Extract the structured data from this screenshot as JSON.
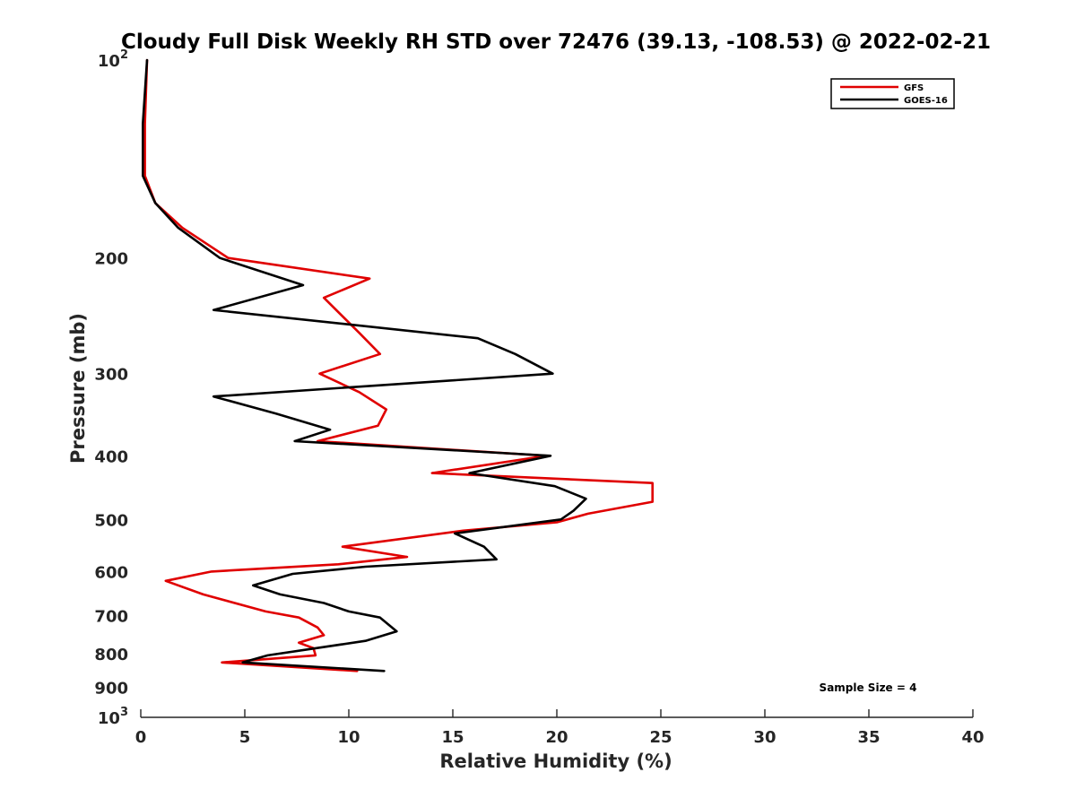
{
  "chart_data": {
    "type": "line",
    "title": "Cloudy Full Disk Weekly RH STD over 72476 (39.13, -108.53) @ 2022-02-21",
    "xlabel": "Relative Humidity (%)",
    "ylabel": "Pressure (mb)",
    "xlim": [
      0,
      40
    ],
    "ylim": [
      100,
      1000
    ],
    "yscale": "log",
    "y_reversed": true,
    "grid": false,
    "x_ticks": [
      0,
      5,
      10,
      15,
      20,
      25,
      30,
      35,
      40
    ],
    "y_ticks": [
      {
        "value": 100,
        "base": "10",
        "exp": "2"
      },
      {
        "value": 200,
        "label": "200"
      },
      {
        "value": 300,
        "label": "300"
      },
      {
        "value": 400,
        "label": "400"
      },
      {
        "value": 500,
        "label": "500"
      },
      {
        "value": 600,
        "label": "600"
      },
      {
        "value": 700,
        "label": "700"
      },
      {
        "value": 800,
        "label": "800"
      },
      {
        "value": 900,
        "label": "900"
      },
      {
        "value": 1000,
        "base": "10",
        "exp": "3"
      }
    ],
    "legend_position": "top-right",
    "annotation": "Sample Size = 4",
    "series": [
      {
        "name": "GFS",
        "color": "#e00000",
        "points": [
          {
            "x": 0.3,
            "y": 100
          },
          {
            "x": 0.2,
            "y": 125
          },
          {
            "x": 0.2,
            "y": 150
          },
          {
            "x": 0.7,
            "y": 165
          },
          {
            "x": 2.0,
            "y": 180
          },
          {
            "x": 4.2,
            "y": 200
          },
          {
            "x": 11.0,
            "y": 215
          },
          {
            "x": 8.8,
            "y": 230
          },
          {
            "x": 10.5,
            "y": 260
          },
          {
            "x": 11.5,
            "y": 280
          },
          {
            "x": 8.6,
            "y": 300
          },
          {
            "x": 10.5,
            "y": 320
          },
          {
            "x": 11.8,
            "y": 340
          },
          {
            "x": 11.4,
            "y": 360
          },
          {
            "x": 8.5,
            "y": 380
          },
          {
            "x": 19.5,
            "y": 400
          },
          {
            "x": 14.0,
            "y": 425
          },
          {
            "x": 24.6,
            "y": 440
          },
          {
            "x": 24.6,
            "y": 470
          },
          {
            "x": 21.5,
            "y": 490
          },
          {
            "x": 20.0,
            "y": 505
          },
          {
            "x": 15.5,
            "y": 520
          },
          {
            "x": 9.7,
            "y": 550
          },
          {
            "x": 12.8,
            "y": 570
          },
          {
            "x": 9.5,
            "y": 585
          },
          {
            "x": 3.4,
            "y": 600
          },
          {
            "x": 1.2,
            "y": 620
          },
          {
            "x": 3.0,
            "y": 650
          },
          {
            "x": 6.0,
            "y": 690
          },
          {
            "x": 7.6,
            "y": 705
          },
          {
            "x": 8.5,
            "y": 730
          },
          {
            "x": 8.8,
            "y": 750
          },
          {
            "x": 7.6,
            "y": 770
          },
          {
            "x": 8.3,
            "y": 785
          },
          {
            "x": 8.4,
            "y": 805
          },
          {
            "x": 3.9,
            "y": 825
          },
          {
            "x": 10.4,
            "y": 850
          }
        ]
      },
      {
        "name": "GOES-16",
        "color": "#000000",
        "points": [
          {
            "x": 0.3,
            "y": 100
          },
          {
            "x": 0.1,
            "y": 125
          },
          {
            "x": 0.1,
            "y": 150
          },
          {
            "x": 0.7,
            "y": 165
          },
          {
            "x": 1.8,
            "y": 180
          },
          {
            "x": 3.8,
            "y": 200
          },
          {
            "x": 7.8,
            "y": 220
          },
          {
            "x": 3.5,
            "y": 240
          },
          {
            "x": 16.2,
            "y": 265
          },
          {
            "x": 18.0,
            "y": 280
          },
          {
            "x": 19.8,
            "y": 300
          },
          {
            "x": 3.5,
            "y": 325
          },
          {
            "x": 6.5,
            "y": 345
          },
          {
            "x": 9.1,
            "y": 365
          },
          {
            "x": 7.4,
            "y": 380
          },
          {
            "x": 19.7,
            "y": 400
          },
          {
            "x": 15.8,
            "y": 425
          },
          {
            "x": 19.9,
            "y": 445
          },
          {
            "x": 21.4,
            "y": 465
          },
          {
            "x": 20.8,
            "y": 485
          },
          {
            "x": 20.2,
            "y": 500
          },
          {
            "x": 15.1,
            "y": 525
          },
          {
            "x": 16.5,
            "y": 550
          },
          {
            "x": 17.1,
            "y": 575
          },
          {
            "x": 10.8,
            "y": 590
          },
          {
            "x": 7.3,
            "y": 605
          },
          {
            "x": 5.4,
            "y": 630
          },
          {
            "x": 6.7,
            "y": 650
          },
          {
            "x": 8.8,
            "y": 670
          },
          {
            "x": 10.0,
            "y": 690
          },
          {
            "x": 11.5,
            "y": 705
          },
          {
            "x": 12.3,
            "y": 740
          },
          {
            "x": 10.8,
            "y": 765
          },
          {
            "x": 6.1,
            "y": 805
          },
          {
            "x": 4.9,
            "y": 825
          },
          {
            "x": 11.7,
            "y": 850
          }
        ]
      }
    ]
  }
}
